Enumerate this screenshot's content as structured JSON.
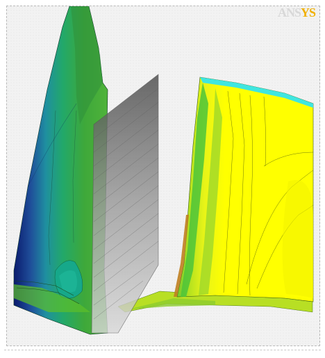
{
  "logo": {
    "part_a": "ANS",
    "part_b": "YS"
  },
  "colors": {
    "background": "#f2f2f2",
    "contour_low": "#0a1a6e",
    "contour_mid_blue": "#1f6fa8",
    "contour_teal": "#16a88a",
    "contour_green": "#5cbf2a",
    "contour_lime": "#b6e01e",
    "contour_yellow": "#ffff00",
    "contour_cyan": "#3fe6e0",
    "mesh_gray": "#7d7d7d",
    "brand_accent": "#f0b000"
  },
  "scene": {
    "type": "cfd-contour-view",
    "objects": [
      "blade-left",
      "mesh-surface",
      "blade-right",
      "hub-surface"
    ]
  }
}
